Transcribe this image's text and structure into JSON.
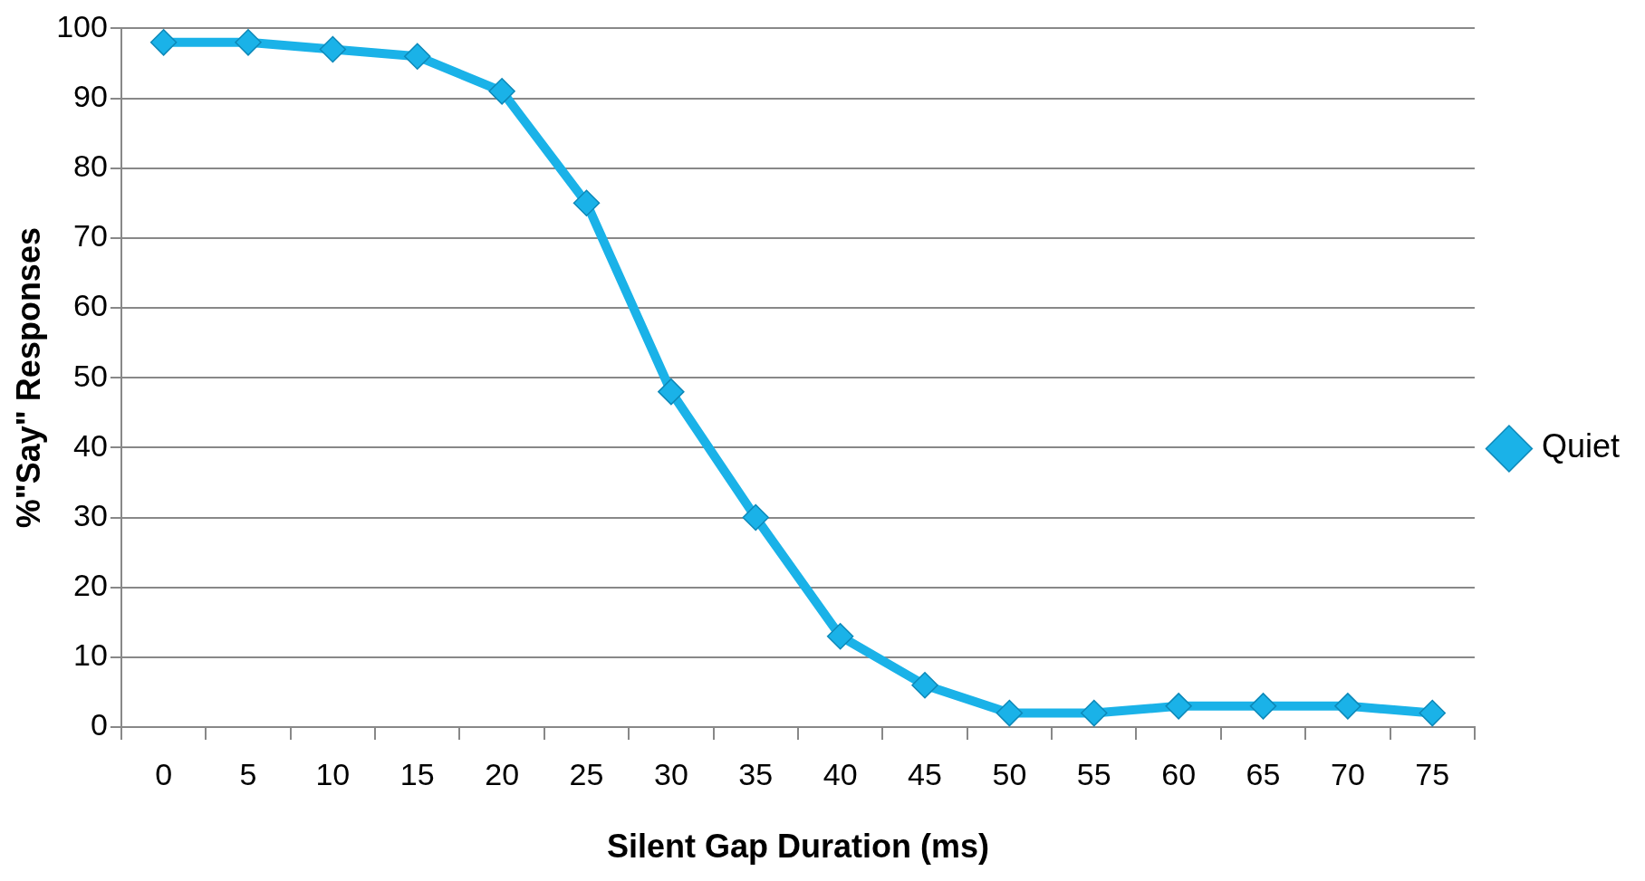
{
  "chart_data": {
    "type": "line",
    "xlabel": "Silent Gap Duration (ms)",
    "ylabel": "%\"Say\" Responses",
    "categories": [
      "0",
      "5",
      "10",
      "15",
      "20",
      "25",
      "30",
      "35",
      "40",
      "45",
      "50",
      "55",
      "60",
      "65",
      "70",
      "75"
    ],
    "series": [
      {
        "name": "Quiet",
        "color": "#1ab2e8",
        "values": [
          98,
          98,
          97,
          96,
          91,
          75,
          48,
          30,
          13,
          6,
          2,
          2,
          3,
          3,
          3,
          2
        ]
      }
    ],
    "ylim": [
      0,
      100
    ],
    "yticks": [
      0,
      10,
      20,
      30,
      40,
      50,
      60,
      70,
      80,
      90,
      100
    ],
    "grid": "y",
    "legend": "right",
    "marker": "diamond",
    "line_style": "solid"
  }
}
